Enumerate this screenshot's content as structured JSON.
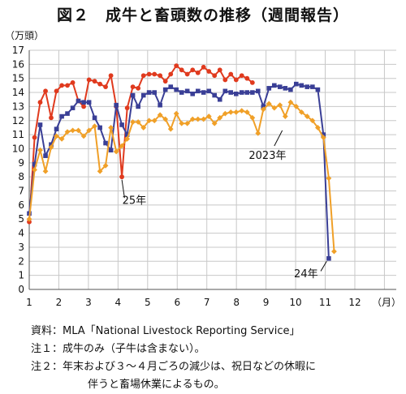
{
  "chart_data": {
    "type": "line",
    "title": "図２　成牛と畜頭数の推移（週間報告）",
    "ylabel": "（万頭）",
    "xlabel": "（月）",
    "ylim": [
      0,
      17
    ],
    "xlim": [
      1,
      13.4
    ],
    "grid": true,
    "y_ticks": [
      "0",
      "1",
      "2",
      "3",
      "4",
      "5",
      "6",
      "7",
      "8",
      "9",
      "10",
      "11",
      "12",
      "13",
      "14",
      "15",
      "16",
      "17"
    ],
    "x_ticks": [
      "1",
      "2",
      "3",
      "4",
      "5",
      "6",
      "7",
      "8",
      "9",
      "10",
      "11",
      "12"
    ],
    "series": [
      {
        "name": "25年",
        "color": "#e03a1e",
        "marker": "circle",
        "points": [
          [
            1.0,
            4.8
          ],
          [
            1.18,
            10.8
          ],
          [
            1.37,
            13.3
          ],
          [
            1.55,
            14.1
          ],
          [
            1.74,
            12.2
          ],
          [
            1.92,
            14.1
          ],
          [
            2.1,
            14.5
          ],
          [
            2.29,
            14.5
          ],
          [
            2.47,
            14.7
          ],
          [
            2.66,
            13.4
          ],
          [
            2.84,
            13.0
          ],
          [
            3.02,
            14.9
          ],
          [
            3.21,
            14.8
          ],
          [
            3.39,
            14.6
          ],
          [
            3.58,
            14.4
          ],
          [
            3.76,
            15.2
          ],
          [
            3.94,
            13.0
          ],
          [
            4.13,
            8.0
          ],
          [
            4.31,
            12.9
          ],
          [
            4.5,
            14.4
          ],
          [
            4.68,
            14.3
          ],
          [
            4.86,
            15.2
          ],
          [
            5.05,
            15.3
          ],
          [
            5.23,
            15.3
          ],
          [
            5.42,
            15.2
          ],
          [
            5.6,
            14.8
          ],
          [
            5.78,
            15.3
          ],
          [
            5.97,
            15.9
          ],
          [
            6.15,
            15.6
          ],
          [
            6.34,
            15.3
          ],
          [
            6.52,
            15.6
          ],
          [
            6.7,
            15.4
          ],
          [
            6.89,
            15.8
          ],
          [
            7.07,
            15.5
          ],
          [
            7.26,
            15.2
          ],
          [
            7.44,
            15.6
          ],
          [
            7.62,
            14.9
          ],
          [
            7.81,
            15.3
          ],
          [
            7.99,
            14.9
          ],
          [
            8.18,
            15.2
          ],
          [
            8.36,
            15.0
          ],
          [
            8.54,
            14.7
          ]
        ]
      },
      {
        "name": "24年",
        "color": "#3a3f96",
        "marker": "square",
        "points": [
          [
            1.0,
            5.4
          ],
          [
            1.18,
            8.9
          ],
          [
            1.37,
            11.7
          ],
          [
            1.55,
            9.5
          ],
          [
            1.74,
            10.3
          ],
          [
            1.92,
            11.4
          ],
          [
            2.1,
            12.3
          ],
          [
            2.29,
            12.5
          ],
          [
            2.47,
            12.9
          ],
          [
            2.66,
            13.4
          ],
          [
            2.84,
            13.3
          ],
          [
            3.02,
            13.3
          ],
          [
            3.21,
            12.2
          ],
          [
            3.39,
            11.5
          ],
          [
            3.58,
            10.4
          ],
          [
            3.76,
            9.9
          ],
          [
            3.94,
            13.1
          ],
          [
            4.13,
            11.7
          ],
          [
            4.31,
            11.0
          ],
          [
            4.5,
            13.8
          ],
          [
            4.68,
            13.0
          ],
          [
            4.86,
            13.8
          ],
          [
            5.05,
            14.0
          ],
          [
            5.23,
            14.0
          ],
          [
            5.42,
            13.1
          ],
          [
            5.6,
            14.2
          ],
          [
            5.78,
            14.4
          ],
          [
            5.97,
            14.2
          ],
          [
            6.15,
            14.0
          ],
          [
            6.34,
            14.1
          ],
          [
            6.52,
            13.9
          ],
          [
            6.7,
            14.1
          ],
          [
            6.89,
            14.0
          ],
          [
            7.07,
            14.1
          ],
          [
            7.26,
            13.8
          ],
          [
            7.44,
            13.5
          ],
          [
            7.62,
            14.1
          ],
          [
            7.81,
            14.0
          ],
          [
            7.99,
            13.9
          ],
          [
            8.18,
            14.0
          ],
          [
            8.36,
            14.0
          ],
          [
            8.54,
            14.0
          ],
          [
            8.73,
            14.1
          ],
          [
            8.91,
            13.0
          ],
          [
            9.1,
            14.3
          ],
          [
            9.28,
            14.5
          ],
          [
            9.47,
            14.4
          ],
          [
            9.65,
            14.3
          ],
          [
            9.83,
            14.2
          ],
          [
            10.02,
            14.6
          ],
          [
            10.2,
            14.5
          ],
          [
            10.39,
            14.4
          ],
          [
            10.57,
            14.4
          ],
          [
            10.75,
            14.2
          ],
          [
            10.94,
            11.0
          ],
          [
            11.12,
            2.2
          ]
        ]
      },
      {
        "name": "2023年",
        "color": "#f0a028",
        "marker": "diamond",
        "points": [
          [
            1.0,
            5.0
          ],
          [
            1.18,
            8.5
          ],
          [
            1.37,
            9.9
          ],
          [
            1.55,
            8.4
          ],
          [
            1.74,
            10.1
          ],
          [
            1.92,
            10.9
          ],
          [
            2.1,
            10.7
          ],
          [
            2.29,
            11.2
          ],
          [
            2.47,
            11.3
          ],
          [
            2.66,
            11.3
          ],
          [
            2.84,
            10.9
          ],
          [
            3.02,
            11.3
          ],
          [
            3.21,
            11.6
          ],
          [
            3.39,
            8.4
          ],
          [
            3.58,
            8.8
          ],
          [
            3.76,
            11.5
          ],
          [
            3.94,
            9.8
          ],
          [
            4.13,
            10.2
          ],
          [
            4.31,
            10.7
          ],
          [
            4.5,
            11.9
          ],
          [
            4.68,
            11.9
          ],
          [
            4.86,
            11.5
          ],
          [
            5.05,
            12.0
          ],
          [
            5.23,
            12.0
          ],
          [
            5.42,
            12.4
          ],
          [
            5.6,
            12.1
          ],
          [
            5.78,
            11.4
          ],
          [
            5.97,
            12.5
          ],
          [
            6.15,
            11.8
          ],
          [
            6.34,
            11.8
          ],
          [
            6.52,
            12.1
          ],
          [
            6.7,
            12.1
          ],
          [
            6.89,
            12.1
          ],
          [
            7.07,
            12.3
          ],
          [
            7.26,
            11.8
          ],
          [
            7.44,
            12.2
          ],
          [
            7.62,
            12.5
          ],
          [
            7.81,
            12.6
          ],
          [
            7.99,
            12.6
          ],
          [
            8.18,
            12.7
          ],
          [
            8.36,
            12.6
          ],
          [
            8.54,
            12.2
          ],
          [
            8.73,
            11.1
          ],
          [
            8.91,
            12.8
          ],
          [
            9.1,
            13.2
          ],
          [
            9.28,
            12.9
          ],
          [
            9.47,
            13.1
          ],
          [
            9.65,
            12.3
          ],
          [
            9.83,
            13.3
          ],
          [
            10.02,
            13.0
          ],
          [
            10.2,
            12.6
          ],
          [
            10.39,
            12.3
          ],
          [
            10.57,
            12.0
          ],
          [
            10.75,
            11.5
          ],
          [
            10.94,
            10.8
          ],
          [
            11.12,
            7.9
          ],
          [
            11.3,
            2.7
          ]
        ]
      }
    ],
    "annotations": [
      {
        "text": "2023年",
        "series": "2023年",
        "at": [
          9.05,
          9.5
        ],
        "leader": [
          [
            9.28,
            10.2
          ],
          [
            9.55,
            11.3
          ]
        ]
      },
      {
        "text": "25年",
        "series": "25年",
        "at": [
          4.55,
          6.3
        ],
        "leader": [
          [
            4.22,
            6.5
          ],
          [
            4.13,
            7.8
          ]
        ]
      },
      {
        "text": "24年",
        "series": "24年",
        "at": [
          10.35,
          1.1
        ],
        "leader": [
          [
            10.85,
            1.3
          ],
          [
            11.05,
            2.0
          ]
        ]
      }
    ]
  },
  "notes": {
    "source": "資料：MLA「National Livestock Reporting Service」",
    "note1": "注１：成牛のみ（子牛は含まない）。",
    "note2_line1": "注２：年末および３～４月ごろの減少は、祝日などの休暇に",
    "note2_line2": "伴うと畜場休業によるもの。"
  }
}
